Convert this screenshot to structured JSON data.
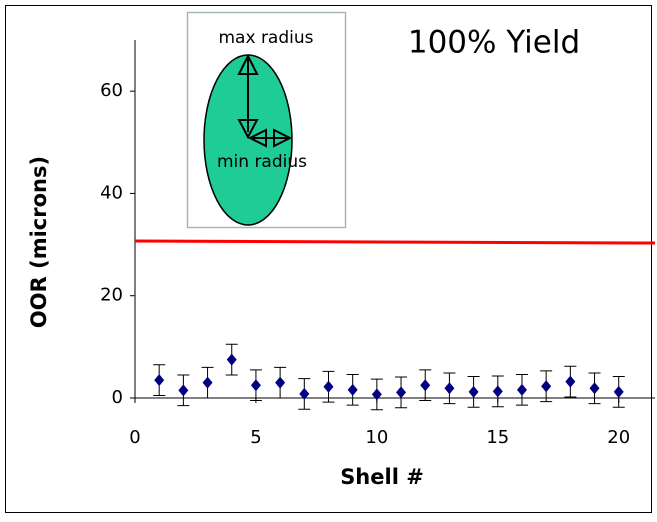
{
  "chart_data": {
    "type": "scatter",
    "title": "100% Yield",
    "x_label": "Shell #",
    "y_label": "OOR (microns)",
    "annotations": [
      "max radius",
      "min radius"
    ],
    "xlim": [
      0,
      21.5
    ],
    "ylim": [
      0,
      70
    ],
    "xticks": [
      0,
      5,
      10,
      15,
      20
    ],
    "yticks": [
      0,
      20,
      40,
      60
    ],
    "series": [
      {
        "color": "#000080",
        "x": [
          1,
          2,
          3,
          4,
          5,
          6,
          7,
          8,
          9,
          10,
          11,
          12,
          13,
          14,
          15,
          16,
          17,
          18,
          19,
          20
        ],
        "values": [
          3.5,
          1.5,
          3,
          7.5,
          2.5,
          3,
          0.8,
          2.2,
          1.6,
          0.7,
          1.1,
          2.5,
          1.9,
          1.2,
          1.3,
          1.6,
          2.3,
          3.2,
          1.9,
          1.2
        ],
        "errors": [
          3,
          3,
          3,
          3,
          3,
          3,
          3,
          3,
          3,
          3,
          3,
          3,
          3,
          3,
          3,
          3,
          3,
          3,
          3,
          3
        ]
      }
    ],
    "reference_line": {
      "color": "#ff0000",
      "values": [
        30.7,
        30.3
      ]
    }
  }
}
